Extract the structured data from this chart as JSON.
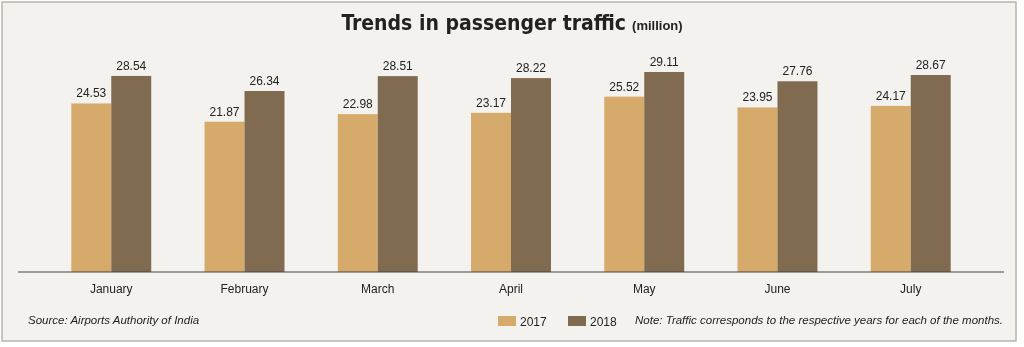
{
  "chart_data": {
    "type": "bar",
    "title": "Trends in passenger traffic",
    "subtitle": "(million)",
    "categories": [
      "January",
      "February",
      "March",
      "April",
      "May",
      "June",
      "July"
    ],
    "series": [
      {
        "name": "2017",
        "color": "#d5aa6b",
        "values": [
          24.53,
          21.87,
          22.98,
          23.17,
          25.52,
          23.95,
          24.17
        ]
      },
      {
        "name": "2018",
        "color": "#806a50",
        "values": [
          28.54,
          26.34,
          28.51,
          28.22,
          29.11,
          27.76,
          28.67
        ]
      }
    ],
    "relative": false,
    "data_labels": true,
    "legend": "bottom",
    "annotations": [
      "Source: Airports Authority of India",
      "Note: Traffic corresponds to the respective years for each of the months."
    ]
  }
}
